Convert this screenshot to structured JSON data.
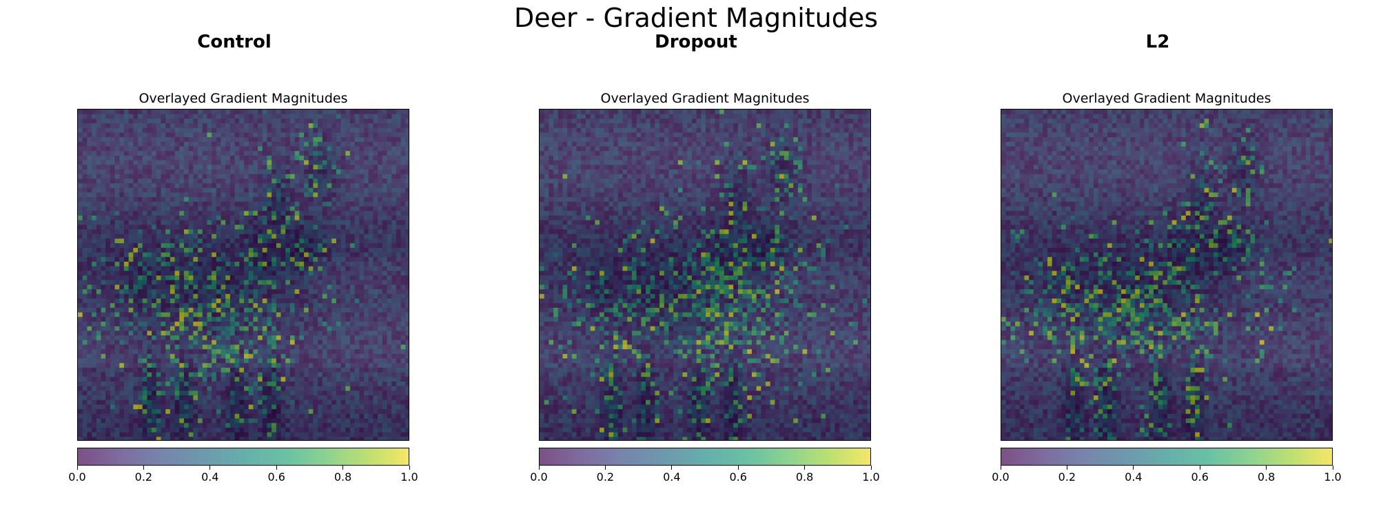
{
  "title": "Deer - Gradient Magnitudes",
  "panels": [
    {
      "label": "Control",
      "subtitle": "Overlayed Gradient Magnitudes",
      "seed": 11
    },
    {
      "label": "Dropout",
      "subtitle": "Overlayed Gradient Magnitudes",
      "seed": 23
    },
    {
      "label": "L2",
      "subtitle": "Overlayed Gradient Magnitudes",
      "seed": 37
    }
  ],
  "chart_data": {
    "type": "heatmap",
    "title": "Deer - Gradient Magnitudes",
    "panels": [
      "Control",
      "Dropout",
      "L2"
    ],
    "colormap": "viridis",
    "colorbar": {
      "range": [
        0,
        1
      ],
      "ticks": [
        0.0,
        0.2,
        0.4,
        0.6,
        0.8,
        1.0
      ],
      "tick_labels": [
        "0.0",
        "0.2",
        "0.4",
        "0.6",
        "0.8",
        "1.0"
      ]
    },
    "overlay_alpha": 0.6
  },
  "colors": {
    "viridis_low": "#440154",
    "viridis_mid": "#21918c",
    "viridis_high": "#fde725"
  }
}
